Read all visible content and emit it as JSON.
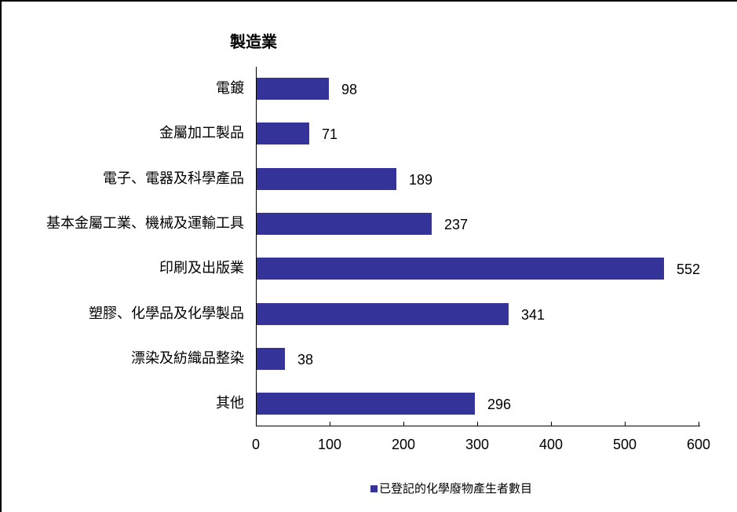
{
  "chart_data": {
    "type": "bar",
    "orientation": "horizontal",
    "title": "製造業",
    "categories": [
      "電鍍",
      "金屬加工製品",
      "電子、電器及科學產品",
      "基本金屬工業、機械及運輸工具",
      "印刷及出版業",
      "塑膠、化學品及化學製品",
      "漂染及紡織品整染",
      "其他"
    ],
    "series": [
      {
        "name": "已登記的化學廢物產生者數目",
        "color": "#333399",
        "values": [
          98,
          71,
          189,
          237,
          552,
          341,
          38,
          296
        ]
      }
    ],
    "xlabel": "",
    "ylabel": "",
    "xlim": [
      0,
      600
    ],
    "xticks": [
      0,
      100,
      200,
      300,
      400,
      500,
      600
    ],
    "data_labels": true,
    "grid": false,
    "legend_position": "bottom"
  },
  "labels": {
    "title": "製造業",
    "categories": [
      "電鍍",
      "金屬加工製品",
      "電子、電器及科學產品",
      "基本金屬工業、機械及運輸工具",
      "印刷及出版業",
      "塑膠、化學品及化學製品",
      "漂染及紡織品整染",
      "其他"
    ],
    "values": [
      "98",
      "71",
      "189",
      "237",
      "552",
      "341",
      "38",
      "296"
    ],
    "xticks": [
      "0",
      "100",
      "200",
      "300",
      "400",
      "500",
      "600"
    ],
    "legend": "已登記的化學廢物產生者數目"
  },
  "colors": {
    "bar": "#333399",
    "axis": "#000000",
    "background": "#ffffff"
  }
}
